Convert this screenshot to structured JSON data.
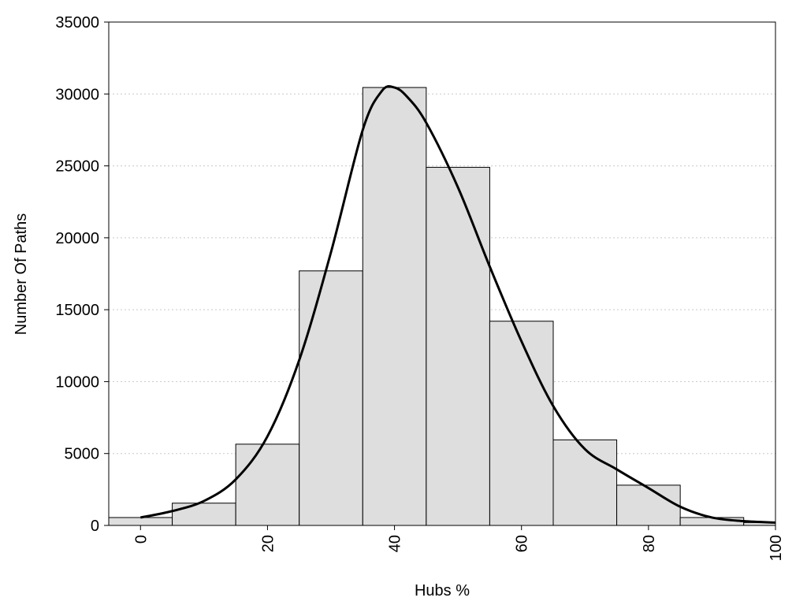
{
  "chart_data": {
    "type": "bar",
    "xlabel": "Hubs %",
    "ylabel": "Number Of Paths",
    "xlim": [
      -5,
      100
    ],
    "ylim": [
      0,
      35000
    ],
    "x_ticks": [
      0,
      20,
      40,
      60,
      80,
      100
    ],
    "y_ticks": [
      0,
      5000,
      10000,
      15000,
      20000,
      25000,
      30000,
      35000
    ],
    "grid": true,
    "bin_width": 10,
    "bars": [
      {
        "x": 0,
        "value": 550
      },
      {
        "x": 10,
        "value": 1550
      },
      {
        "x": 20,
        "value": 5650
      },
      {
        "x": 30,
        "value": 17700
      },
      {
        "x": 40,
        "value": 30450
      },
      {
        "x": 50,
        "value": 24900
      },
      {
        "x": 60,
        "value": 14200
      },
      {
        "x": 70,
        "value": 5950
      },
      {
        "x": 80,
        "value": 2800
      },
      {
        "x": 90,
        "value": 550
      },
      {
        "x": 100,
        "value": 200
      }
    ],
    "density_curve": {
      "x": [
        0,
        5,
        10,
        15,
        20,
        25,
        30,
        35,
        38,
        40,
        42,
        45,
        50,
        55,
        60,
        65,
        70,
        75,
        80,
        85,
        90,
        95,
        100
      ],
      "y": [
        550,
        1000,
        1700,
        3200,
        6200,
        11500,
        19000,
        27500,
        30200,
        30450,
        29800,
        28000,
        23500,
        18000,
        12800,
        8300,
        5300,
        3900,
        2600,
        1300,
        550,
        300,
        200
      ]
    }
  }
}
